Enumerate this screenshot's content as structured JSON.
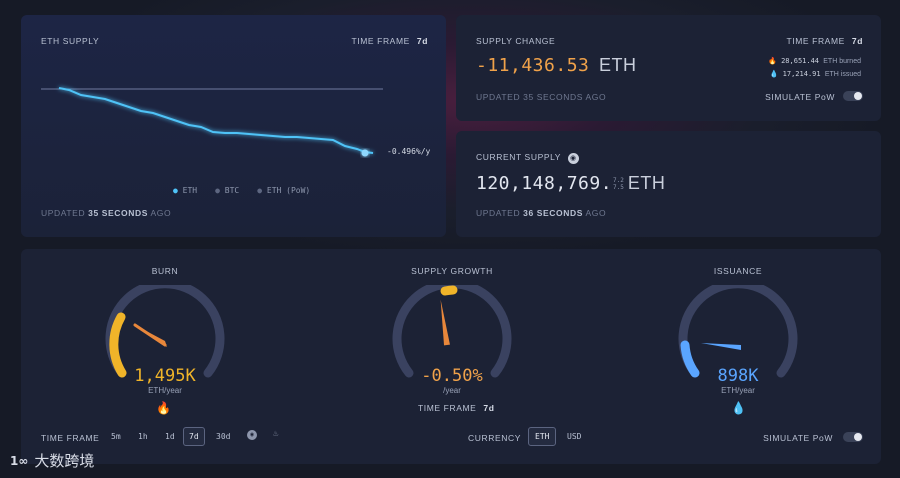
{
  "supply_chart": {
    "title": "ETH SUPPLY",
    "time_frame_label": "TIME FRAME",
    "time_frame_value": "7d",
    "end_label": "-0.496%/y",
    "legend": [
      "ETH",
      "BTC",
      "ETH (PoW)"
    ],
    "updated_prefix": "UPDATED",
    "updated_value": "35 SECONDS",
    "updated_suffix": "AGO"
  },
  "supply_change": {
    "title": "SUPPLY CHANGE",
    "time_frame_label": "TIME FRAME",
    "time_frame_value": "7d",
    "value": "-11,436.53",
    "unit": "ETH",
    "burned_value": "28,651.44",
    "burned_label": "ETH burned",
    "issued_value": "17,214.91",
    "issued_label": "ETH issued",
    "updated": "UPDATED 35 SECONDS AGO",
    "simulate_label": "SIMULATE PoW"
  },
  "current_supply": {
    "title": "CURRENT SUPPLY",
    "value": "120,148,769.",
    "decimals_top": "7.2",
    "decimals_bottom": "7.5",
    "unit": "ETH",
    "updated_prefix": "UPDATED",
    "updated_value": "36 SECONDS",
    "updated_suffix": "AGO"
  },
  "gauges": {
    "burn": {
      "title": "BURN",
      "value": "1,495K",
      "unit": "ETH/year",
      "level": 0.6,
      "color": "#f0b429"
    },
    "growth": {
      "title": "SUPPLY GROWTH",
      "value": "-0.50%",
      "unit": "/year",
      "level": -0.02,
      "color": "#f0b429"
    },
    "issuance": {
      "title": "ISSUANCE",
      "value": "898K",
      "unit": "ETH/year",
      "level": 0.3,
      "color": "#5aa5ff"
    }
  },
  "bottom_bar": {
    "time_frame_label": "TIME FRAME",
    "time_frames": [
      "5m",
      "1h",
      "1d",
      "7d",
      "30d"
    ],
    "active_time_frame": "7d",
    "growth_time_frame_label": "TIME FRAME",
    "growth_time_frame_value": "7d",
    "currency_label": "CURRENCY",
    "currencies": [
      "ETH",
      "USD"
    ],
    "active_currency": "ETH",
    "simulate_label": "SIMULATE PoW"
  },
  "watermark": "大数跨境",
  "colors": {
    "line": "#4fc3f7",
    "negative": "#f0a24a",
    "issuance": "#5aa5ff",
    "card": "#1c2235"
  }
}
